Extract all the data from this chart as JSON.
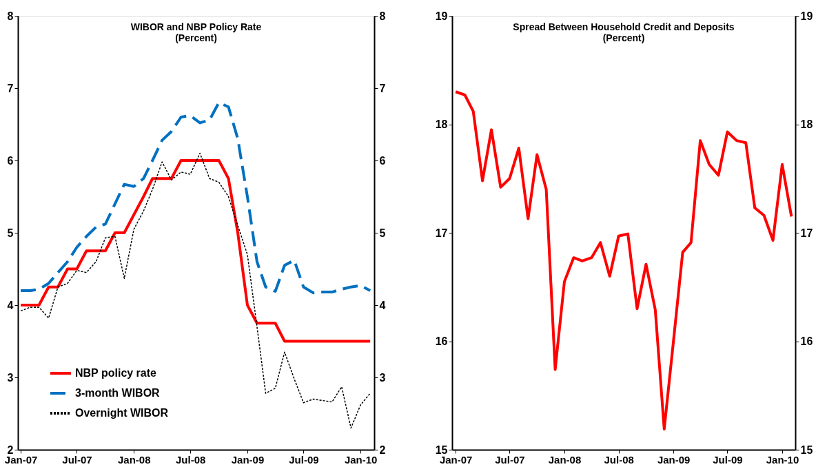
{
  "chart_data": [
    {
      "type": "line",
      "title": "WIBOR and NBP Policy Rate",
      "subtitle": "(Percent)",
      "x": [
        "2007-01",
        "2007-02",
        "2007-03",
        "2007-04",
        "2007-05",
        "2007-06",
        "2007-07",
        "2007-08",
        "2007-09",
        "2007-10",
        "2007-11",
        "2007-12",
        "2008-01",
        "2008-02",
        "2008-03",
        "2008-04",
        "2008-05",
        "2008-06",
        "2008-07",
        "2008-08",
        "2008-09",
        "2008-10",
        "2008-11",
        "2008-12",
        "2009-01",
        "2009-02",
        "2009-03",
        "2009-04",
        "2009-05",
        "2009-06",
        "2009-07",
        "2009-08",
        "2009-09",
        "2009-10",
        "2009-11",
        "2009-12",
        "2010-01",
        "2010-02"
      ],
      "series": [
        {
          "name": "NBP policy rate",
          "color": "#ff0000",
          "line_style": "solid",
          "values": [
            4.0,
            4.0,
            4.0,
            4.25,
            4.25,
            4.5,
            4.5,
            4.75,
            4.75,
            4.75,
            5.0,
            5.0,
            5.25,
            5.5,
            5.75,
            5.75,
            5.75,
            6.0,
            6.0,
            6.0,
            6.0,
            6.0,
            5.75,
            5.0,
            4.0,
            3.75,
            3.75,
            3.75,
            3.5,
            3.5,
            3.5,
            3.5,
            3.5,
            3.5,
            3.5,
            3.5,
            3.5,
            3.5
          ]
        },
        {
          "name": "3-month WIBOR",
          "color": "#0070c0",
          "line_style": "dashed",
          "values": [
            4.2,
            4.2,
            4.22,
            4.3,
            4.45,
            4.6,
            4.8,
            4.95,
            5.08,
            5.12,
            5.4,
            5.67,
            5.64,
            5.75,
            6.0,
            6.28,
            6.4,
            6.6,
            6.62,
            6.52,
            6.56,
            6.8,
            6.74,
            6.3,
            5.5,
            4.6,
            4.25,
            4.19,
            4.55,
            4.62,
            4.25,
            4.17,
            4.18,
            4.18,
            4.22,
            4.25,
            4.27,
            4.2
          ]
        },
        {
          "name": "Overnight WIBOR",
          "color": "#000000",
          "line_style": "dotted",
          "values": [
            3.92,
            3.97,
            3.97,
            3.82,
            4.25,
            4.3,
            4.48,
            4.45,
            4.6,
            4.93,
            4.95,
            4.37,
            5.05,
            5.3,
            5.6,
            5.98,
            5.73,
            5.84,
            5.81,
            6.1,
            5.75,
            5.7,
            5.5,
            5.1,
            4.7,
            3.7,
            2.78,
            2.85,
            3.35,
            2.98,
            2.65,
            2.7,
            2.68,
            2.66,
            2.87,
            2.3,
            2.62,
            2.78
          ]
        }
      ],
      "xlim": [
        "2006-12-23",
        "2010-02-14"
      ],
      "xticks": [
        {
          "value": "2007-01",
          "label": "Jan-07"
        },
        {
          "value": "2007-07",
          "label": "Jul-07"
        },
        {
          "value": "2008-01",
          "label": "Jan-08"
        },
        {
          "value": "2008-07",
          "label": "Jul-08"
        },
        {
          "value": "2009-01",
          "label": "Jan-09"
        },
        {
          "value": "2009-07",
          "label": "Jul-09"
        },
        {
          "value": "2010-01",
          "label": "Jan-10"
        }
      ],
      "ylim": [
        2,
        8
      ],
      "yticks": [
        2,
        3,
        4,
        5,
        6,
        7,
        8
      ],
      "y2lim": [
        2,
        8
      ],
      "y2ticks": [
        2,
        3,
        4,
        5,
        6,
        7,
        8
      ],
      "grid": false,
      "legend": "bottom left"
    },
    {
      "type": "line",
      "title": "Spread Between Household Credit and Deposits",
      "subtitle": "(Percent)",
      "x": [
        "2007-01",
        "2007-02",
        "2007-03",
        "2007-04",
        "2007-05",
        "2007-06",
        "2007-07",
        "2007-08",
        "2007-09",
        "2007-10",
        "2007-11",
        "2007-12",
        "2008-01",
        "2008-02",
        "2008-03",
        "2008-04",
        "2008-05",
        "2008-06",
        "2008-07",
        "2008-08",
        "2008-09",
        "2008-10",
        "2008-11",
        "2008-12",
        "2009-01",
        "2009-02",
        "2009-03",
        "2009-04",
        "2009-05",
        "2009-06",
        "2009-07",
        "2009-08",
        "2009-09",
        "2009-10",
        "2009-11",
        "2009-12",
        "2010-01",
        "2010-02"
      ],
      "series": [
        {
          "color": "#ff0000",
          "line_style": "solid",
          "values": [
            18.3,
            18.27,
            18.12,
            17.48,
            17.95,
            17.42,
            17.5,
            17.78,
            17.13,
            17.72,
            17.4,
            15.74,
            16.55,
            16.77,
            16.74,
            16.77,
            16.91,
            16.6,
            16.97,
            16.99,
            16.3,
            16.71,
            16.29,
            15.19,
            16.0,
            16.82,
            16.91,
            17.85,
            17.63,
            17.53,
            17.93,
            17.85,
            17.83,
            17.23,
            17.16,
            16.93,
            17.63,
            17.15
          ]
        }
      ],
      "xlim": [
        "2006-12-20",
        "2010-02-14"
      ],
      "xticks": [
        {
          "value": "2007-01",
          "label": "Jan-07"
        },
        {
          "value": "2007-07",
          "label": "Jul-07"
        },
        {
          "value": "2008-01",
          "label": "Jan-08"
        },
        {
          "value": "2008-07",
          "label": "Jul-08"
        },
        {
          "value": "2009-01",
          "label": "Jan-09"
        },
        {
          "value": "2009-07",
          "label": "Jul-09"
        },
        {
          "value": "2010-01",
          "label": "Jan-10"
        }
      ],
      "ylim": [
        15,
        19
      ],
      "yticks": [
        15,
        16,
        17,
        18,
        19
      ],
      "y2lim": [
        15,
        19
      ],
      "y2ticks": [
        15,
        16,
        17,
        18,
        19
      ],
      "grid": false,
      "legend": false
    }
  ]
}
